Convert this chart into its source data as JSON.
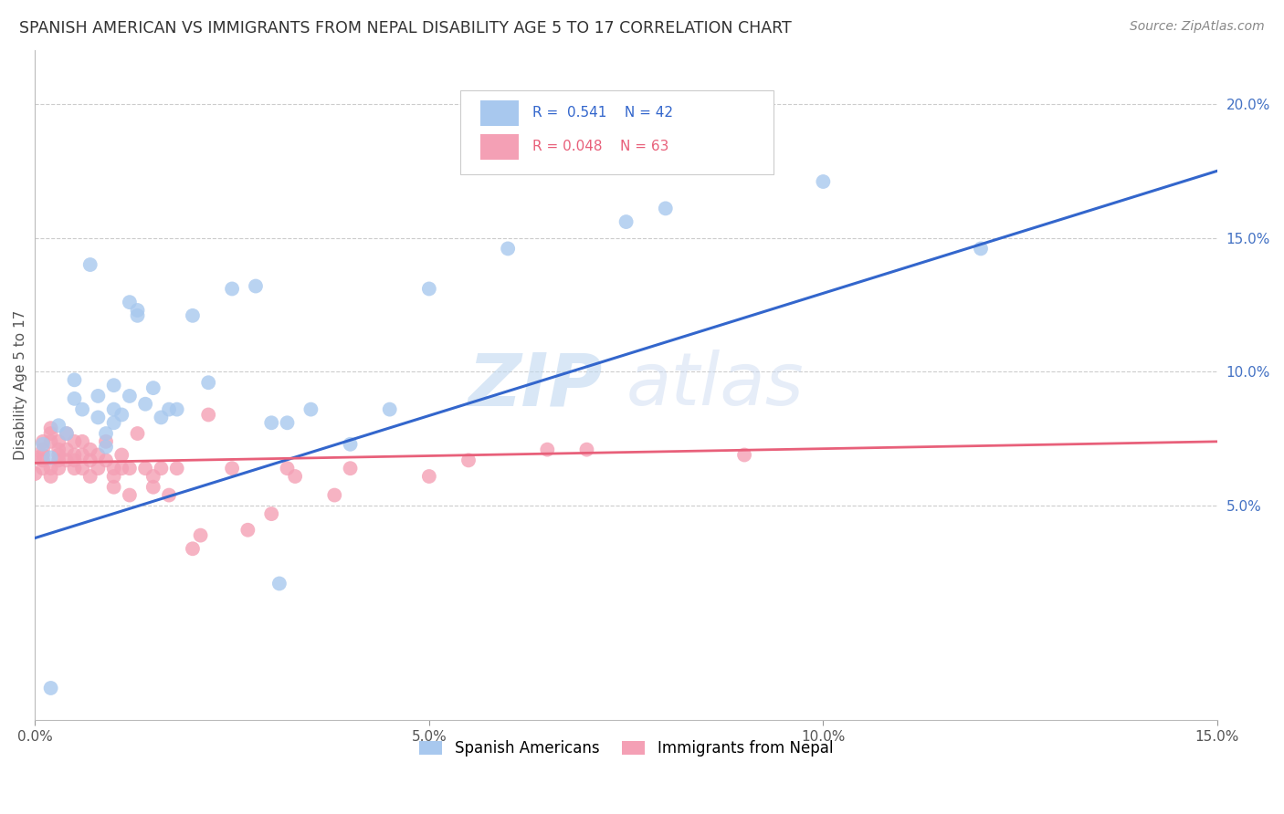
{
  "title": "SPANISH AMERICAN VS IMMIGRANTS FROM NEPAL DISABILITY AGE 5 TO 17 CORRELATION CHART",
  "source": "Source: ZipAtlas.com",
  "ylabel": "Disability Age 5 to 17",
  "xlim": [
    0.0,
    0.15
  ],
  "ylim": [
    -0.03,
    0.22
  ],
  "xticks": [
    0.0,
    0.05,
    0.1,
    0.15
  ],
  "xtick_labels": [
    "0.0%",
    "5.0%",
    "10.0%",
    "15.0%"
  ],
  "yticks_right": [
    0.05,
    0.1,
    0.15,
    0.2
  ],
  "ytick_labels_right": [
    "5.0%",
    "10.0%",
    "15.0%",
    "20.0%"
  ],
  "blue_color": "#A8C8EE",
  "pink_color": "#F4A0B5",
  "blue_line_color": "#3366CC",
  "pink_line_color": "#E8607A",
  "blue_scatter": [
    [
      0.001,
      0.073
    ],
    [
      0.002,
      0.068
    ],
    [
      0.003,
      0.08
    ],
    [
      0.004,
      0.077
    ],
    [
      0.005,
      0.09
    ],
    [
      0.005,
      0.097
    ],
    [
      0.006,
      0.086
    ],
    [
      0.007,
      0.14
    ],
    [
      0.008,
      0.091
    ],
    [
      0.008,
      0.083
    ],
    [
      0.009,
      0.077
    ],
    [
      0.009,
      0.072
    ],
    [
      0.01,
      0.081
    ],
    [
      0.01,
      0.095
    ],
    [
      0.01,
      0.086
    ],
    [
      0.011,
      0.084
    ],
    [
      0.012,
      0.091
    ],
    [
      0.012,
      0.126
    ],
    [
      0.013,
      0.121
    ],
    [
      0.013,
      0.123
    ],
    [
      0.014,
      0.088
    ],
    [
      0.015,
      0.094
    ],
    [
      0.016,
      0.083
    ],
    [
      0.017,
      0.086
    ],
    [
      0.018,
      0.086
    ],
    [
      0.02,
      0.121
    ],
    [
      0.022,
      0.096
    ],
    [
      0.025,
      0.131
    ],
    [
      0.028,
      0.132
    ],
    [
      0.03,
      0.081
    ],
    [
      0.031,
      0.021
    ],
    [
      0.032,
      0.081
    ],
    [
      0.035,
      0.086
    ],
    [
      0.04,
      0.073
    ],
    [
      0.045,
      0.086
    ],
    [
      0.05,
      0.131
    ],
    [
      0.06,
      0.146
    ],
    [
      0.075,
      0.156
    ],
    [
      0.08,
      0.161
    ],
    [
      0.1,
      0.171
    ],
    [
      0.12,
      0.146
    ],
    [
      0.002,
      -0.018
    ]
  ],
  "pink_scatter": [
    [
      0.0,
      0.068
    ],
    [
      0.0,
      0.062
    ],
    [
      0.001,
      0.069
    ],
    [
      0.001,
      0.074
    ],
    [
      0.001,
      0.067
    ],
    [
      0.001,
      0.071
    ],
    [
      0.001,
      0.064
    ],
    [
      0.002,
      0.079
    ],
    [
      0.002,
      0.074
    ],
    [
      0.002,
      0.064
    ],
    [
      0.002,
      0.077
    ],
    [
      0.002,
      0.061
    ],
    [
      0.003,
      0.069
    ],
    [
      0.003,
      0.067
    ],
    [
      0.003,
      0.064
    ],
    [
      0.003,
      0.074
    ],
    [
      0.003,
      0.071
    ],
    [
      0.004,
      0.067
    ],
    [
      0.004,
      0.071
    ],
    [
      0.004,
      0.077
    ],
    [
      0.005,
      0.069
    ],
    [
      0.005,
      0.064
    ],
    [
      0.005,
      0.067
    ],
    [
      0.005,
      0.074
    ],
    [
      0.006,
      0.064
    ],
    [
      0.006,
      0.069
    ],
    [
      0.006,
      0.074
    ],
    [
      0.007,
      0.061
    ],
    [
      0.007,
      0.067
    ],
    [
      0.007,
      0.071
    ],
    [
      0.008,
      0.069
    ],
    [
      0.008,
      0.064
    ],
    [
      0.009,
      0.074
    ],
    [
      0.009,
      0.067
    ],
    [
      0.01,
      0.064
    ],
    [
      0.01,
      0.061
    ],
    [
      0.01,
      0.057
    ],
    [
      0.011,
      0.064
    ],
    [
      0.011,
      0.069
    ],
    [
      0.012,
      0.054
    ],
    [
      0.012,
      0.064
    ],
    [
      0.013,
      0.077
    ],
    [
      0.014,
      0.064
    ],
    [
      0.015,
      0.061
    ],
    [
      0.015,
      0.057
    ],
    [
      0.016,
      0.064
    ],
    [
      0.017,
      0.054
    ],
    [
      0.018,
      0.064
    ],
    [
      0.02,
      0.034
    ],
    [
      0.021,
      0.039
    ],
    [
      0.022,
      0.084
    ],
    [
      0.025,
      0.064
    ],
    [
      0.027,
      0.041
    ],
    [
      0.03,
      0.047
    ],
    [
      0.032,
      0.064
    ],
    [
      0.033,
      0.061
    ],
    [
      0.038,
      0.054
    ],
    [
      0.04,
      0.064
    ],
    [
      0.05,
      0.061
    ],
    [
      0.055,
      0.067
    ],
    [
      0.065,
      0.071
    ],
    [
      0.07,
      0.071
    ],
    [
      0.09,
      0.069
    ]
  ],
  "blue_line_x": [
    0.0,
    0.15
  ],
  "blue_line_y": [
    0.038,
    0.175
  ],
  "pink_line_x": [
    0.0,
    0.15
  ],
  "pink_line_y": [
    0.066,
    0.074
  ],
  "watermark_zip": "ZIP",
  "watermark_atlas": "atlas",
  "background_color": "#ffffff",
  "grid_color": "#cccccc",
  "title_color": "#333333",
  "right_tick_color": "#4472c4"
}
